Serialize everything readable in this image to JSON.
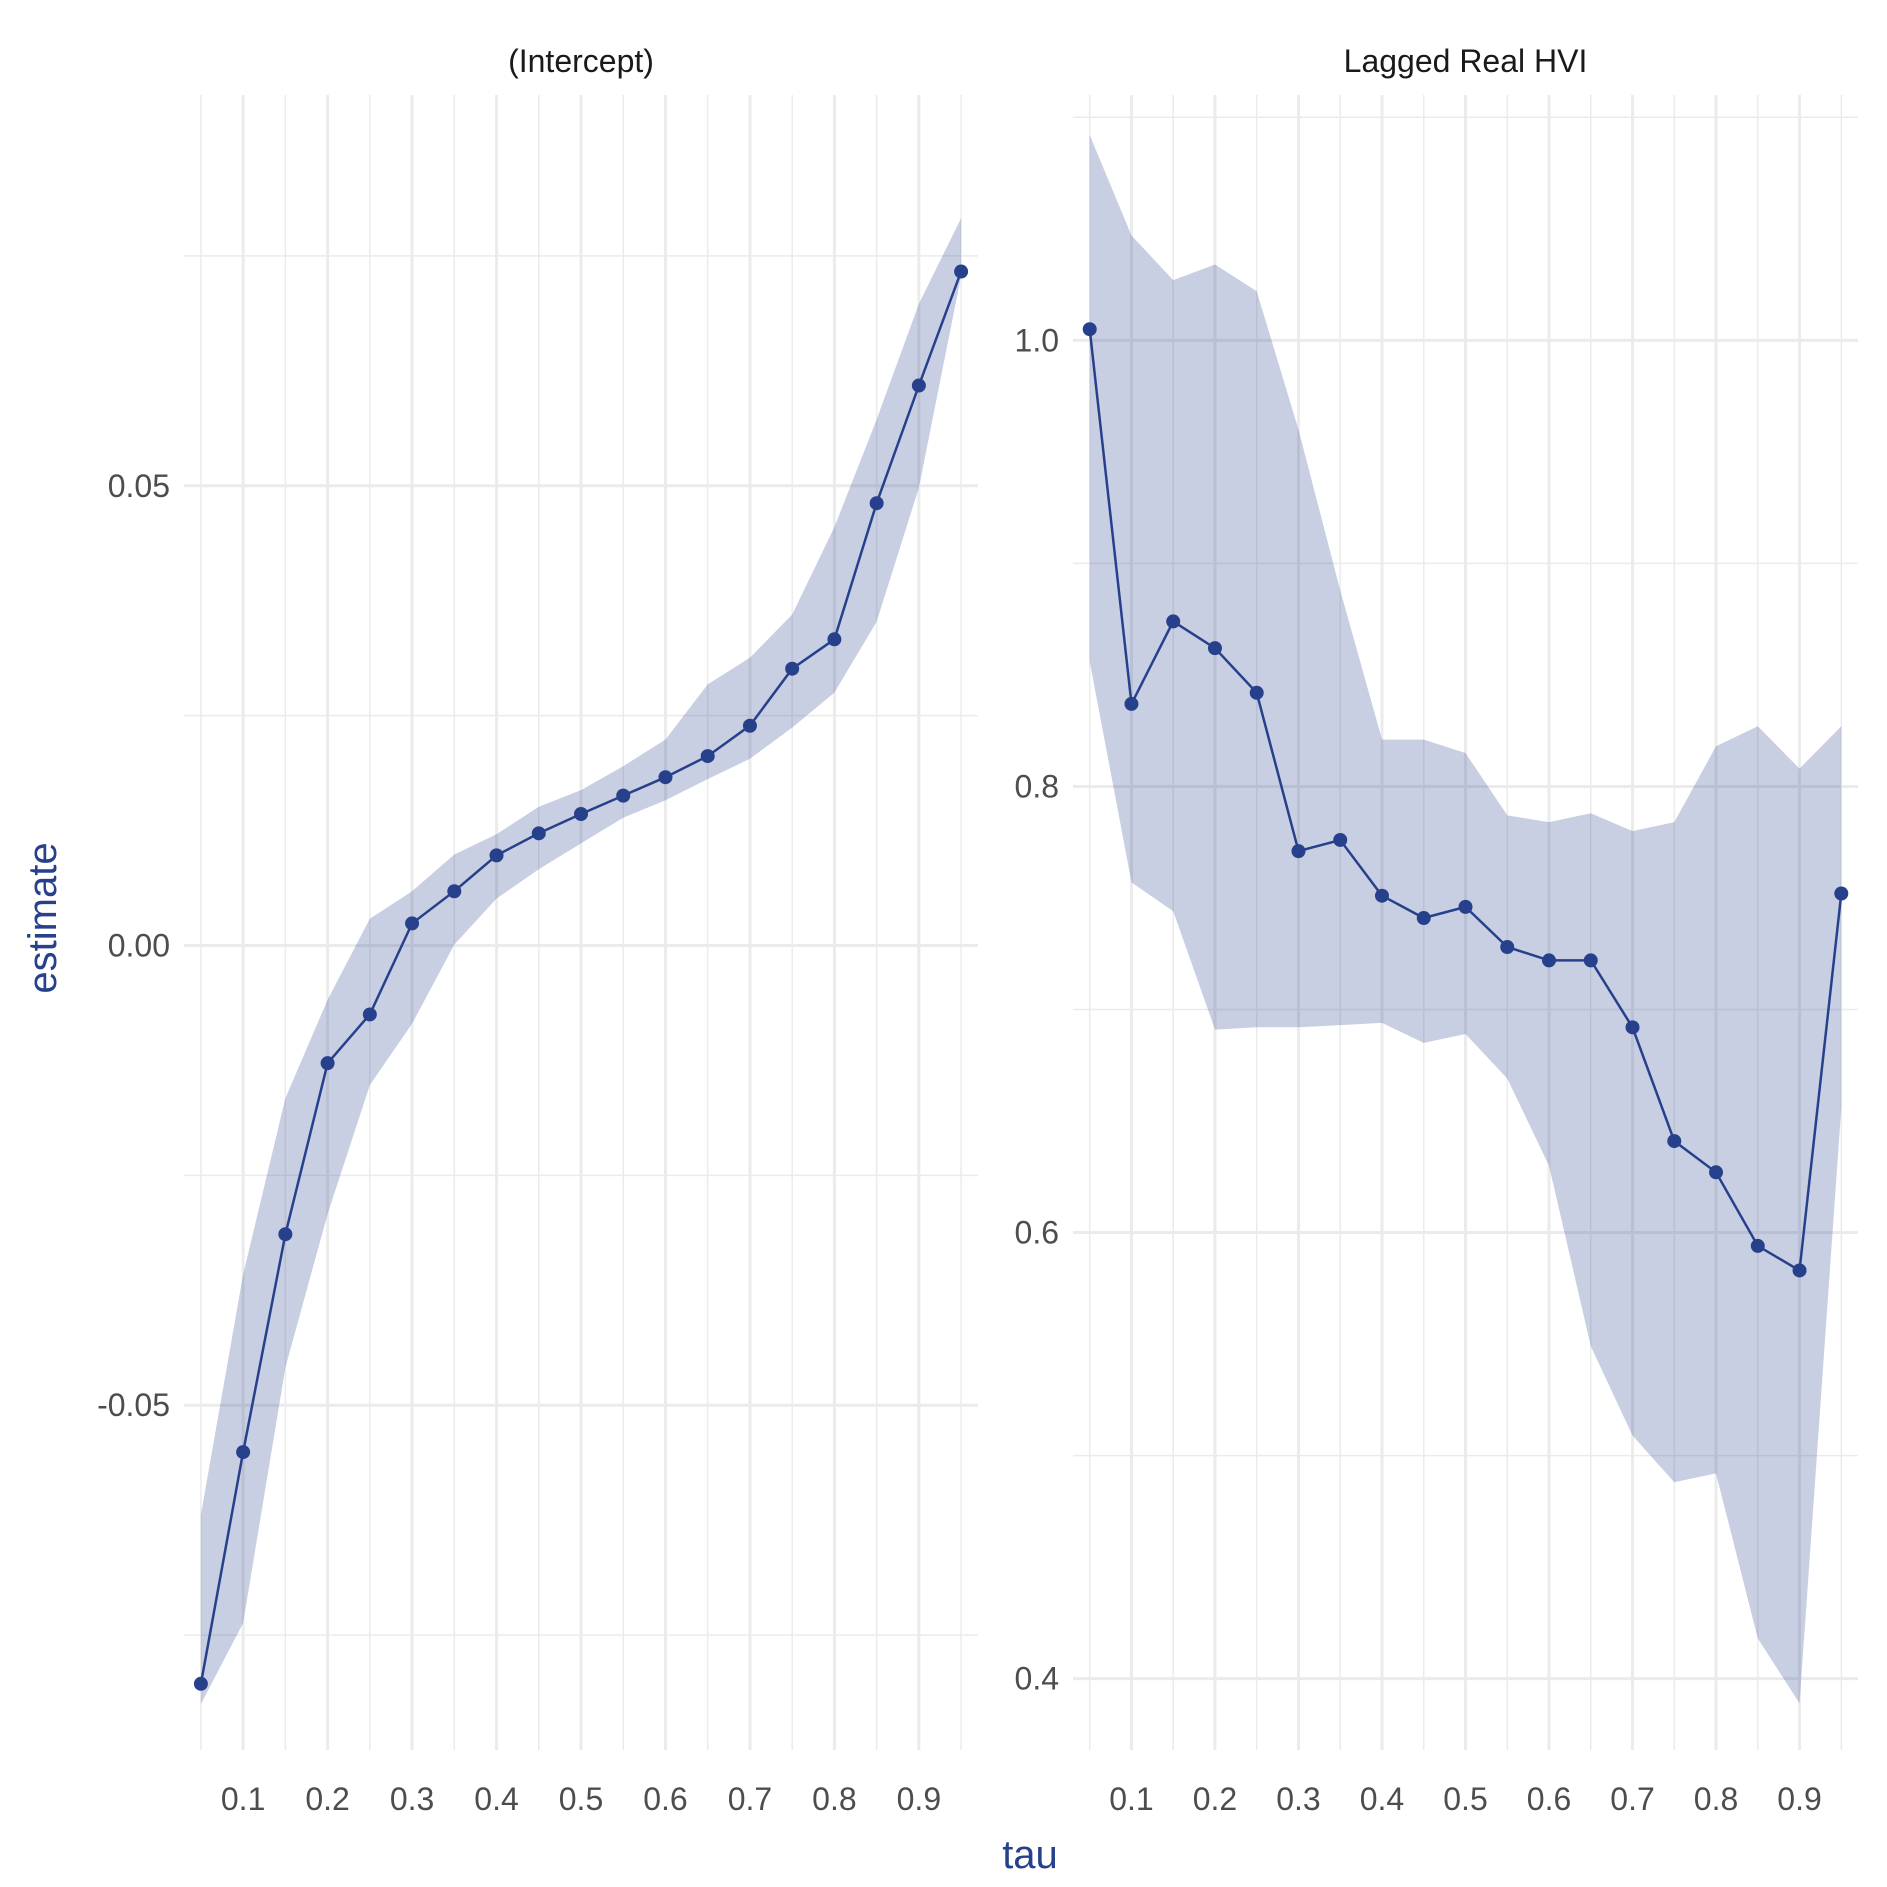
{
  "colors": {
    "series": "#27408b",
    "ribbon": "#27408b",
    "axis_title": "#27408b",
    "grid": "#ebebeb",
    "tick_label": "#4d4d4d",
    "strip_label": "#1a1a1a",
    "background": "#ffffff"
  },
  "chart_data": {
    "type": "line",
    "facet_layout": "1x2",
    "xlabel": "tau",
    "ylabel": "estimate",
    "grid": true,
    "legend": "none",
    "ribbon_alpha": 0.25,
    "x_ticks": [
      0.1,
      0.2,
      0.3,
      0.4,
      0.5,
      0.6,
      0.7,
      0.8,
      0.9
    ],
    "x_tick_labels": [
      "0.1",
      "0.2",
      "0.3",
      "0.4",
      "0.5",
      "0.6",
      "0.7",
      "0.8",
      "0.9"
    ],
    "x_minor_ticks": [
      0.05,
      0.15,
      0.25,
      0.35,
      0.45,
      0.55,
      0.65,
      0.75,
      0.85,
      0.95
    ],
    "xlim": [
      0.03,
      0.97
    ],
    "panels": [
      {
        "title": "(Intercept)",
        "ylim": [
          -0.0875,
          0.0925
        ],
        "y_ticks": [
          -0.05,
          0,
          0.05
        ],
        "y_tick_labels": [
          "-0.05",
          "0.00",
          "0.05"
        ],
        "y_minor_ticks": [
          -0.075,
          -0.025,
          0.025,
          0.075
        ],
        "x": [
          0.05,
          0.1,
          0.15,
          0.2,
          0.25,
          0.3,
          0.35,
          0.4,
          0.45,
          0.5,
          0.55,
          0.6,
          0.65,
          0.7,
          0.75,
          0.8,
          0.85,
          0.9,
          0.95
        ],
        "estimate": [
          -0.0803,
          -0.0551,
          -0.0314,
          -0.0128,
          -0.0075,
          0.0024,
          0.0059,
          0.0098,
          0.0122,
          0.0143,
          0.0163,
          0.0183,
          0.0206,
          0.0239,
          0.0301,
          0.0333,
          0.0481,
          0.0609,
          0.0733
        ],
        "lower": [
          -0.0825,
          -0.0737,
          -0.0459,
          -0.0292,
          -0.0152,
          -0.0085,
          0.0001,
          0.0051,
          0.0083,
          0.0111,
          0.0139,
          0.0158,
          0.0181,
          0.0203,
          0.0237,
          0.0275,
          0.0352,
          0.0498,
          0.0728
        ],
        "upper": [
          -0.0619,
          -0.0358,
          -0.0166,
          -0.0059,
          0.0029,
          0.0059,
          0.0099,
          0.0121,
          0.0151,
          0.0169,
          0.0195,
          0.0224,
          0.0284,
          0.0313,
          0.036,
          0.0455,
          0.0572,
          0.0698,
          0.0791
        ]
      },
      {
        "title": "Lagged Real HVI",
        "ylim": [
          0.368,
          1.11
        ],
        "y_ticks": [
          0.4,
          0.6,
          0.8,
          1.0
        ],
        "y_tick_labels": [
          "0.4",
          "0.6",
          "0.8",
          "1.0"
        ],
        "y_minor_ticks": [
          0.5,
          0.7,
          0.9,
          1.1
        ],
        "x": [
          0.05,
          0.1,
          0.15,
          0.2,
          0.25,
          0.3,
          0.35,
          0.4,
          0.45,
          0.5,
          0.55,
          0.6,
          0.65,
          0.7,
          0.75,
          0.8,
          0.85,
          0.9,
          0.95
        ],
        "estimate": [
          1.005,
          0.837,
          0.874,
          0.862,
          0.842,
          0.771,
          0.776,
          0.751,
          0.741,
          0.746,
          0.728,
          0.722,
          0.722,
          0.692,
          0.641,
          0.627,
          0.594,
          0.583,
          0.752
        ],
        "lower": [
          0.856,
          0.757,
          0.744,
          0.691,
          0.692,
          0.692,
          0.693,
          0.694,
          0.685,
          0.689,
          0.669,
          0.63,
          0.549,
          0.509,
          0.488,
          0.492,
          0.418,
          0.389,
          0.656
        ],
        "upper": [
          1.092,
          1.047,
          1.027,
          1.034,
          1.022,
          0.96,
          0.888,
          0.821,
          0.821,
          0.815,
          0.787,
          0.784,
          0.788,
          0.78,
          0.784,
          0.818,
          0.827,
          0.808,
          0.827
        ]
      }
    ]
  }
}
